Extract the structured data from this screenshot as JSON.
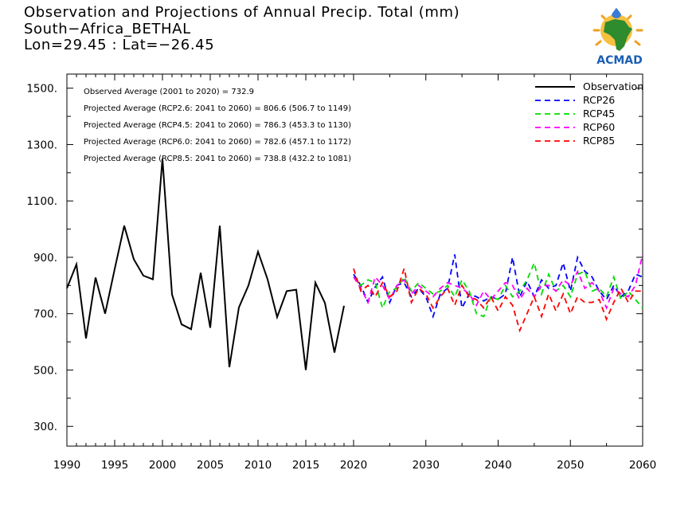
{
  "header": {
    "title_line1": "Observation and Projections of Annual Precip. Total (mm)",
    "title_line2": "South−Africa_BETHAL",
    "title_line3": "Lon=29.45 : Lat=−26.45"
  },
  "logo": {
    "text": "ACMAD",
    "icon": "africa-map-sun-logo"
  },
  "stats": [
    "Observed Average (2001 to 2020) = 732.9",
    "Projected Average (RCP2.6: 2041 to 2060) = 806.6 (506.7 to 1149)",
    "Projected Average (RCP4.5: 2041 to 2060) = 786.3 (453.3 to 1130)",
    "Projected Average (RCP6.0: 2041 to 2060) = 782.6 (457.1 to 1172)",
    "Projected Average (RCP8.5: 2041 to 2060) = 738.8 (432.2 to 1081)"
  ],
  "chart_data": {
    "type": "line",
    "title": "Observation and Projections of Annual Precip. Total (mm)",
    "xlabel": "",
    "ylabel": "",
    "xlim": [
      1990,
      2060
    ],
    "ylim": [
      230,
      1550
    ],
    "x_ticks": [
      1990,
      1995,
      2000,
      2005,
      2010,
      2015,
      2020,
      2030,
      2040,
      2050,
      2060
    ],
    "y_ticks": [
      300,
      500,
      700,
      900,
      1100,
      1300,
      1500
    ],
    "y_tick_labels": [
      "300.",
      "500.",
      "700.",
      "900.",
      "1100.",
      "1300.",
      "1500."
    ],
    "grid": false,
    "legend_position": "top-right",
    "series": [
      {
        "name": "Observation",
        "color": "#000000",
        "style": "solid",
        "x": [
          1990,
          1991,
          1992,
          1993,
          1994,
          1995,
          1996,
          1997,
          1998,
          1999,
          2000,
          2001,
          2002,
          2003,
          2004,
          2005,
          2006,
          2007,
          2008,
          2009,
          2010,
          2011,
          2012,
          2013,
          2014,
          2015,
          2016,
          2017,
          2018,
          2019,
          2020
        ],
        "values": [
          790,
          875,
          612,
          828,
          700,
          858,
          1012,
          893,
          835,
          822,
          1250,
          768,
          662,
          645,
          845,
          650,
          1012,
          510,
          722,
          800,
          920,
          822,
          688,
          780,
          785,
          500,
          810,
          738,
          562,
          728,
          null
        ]
      },
      {
        "name": "RCP26",
        "color": "#0000ff",
        "style": "dashed",
        "x": [
          2020,
          2021,
          2022,
          2023,
          2024,
          2025,
          2026,
          2027,
          2028,
          2029,
          2030,
          2031,
          2032,
          2033,
          2034,
          2035,
          2036,
          2037,
          2038,
          2039,
          2040,
          2041,
          2042,
          2043,
          2044,
          2045,
          2046,
          2047,
          2048,
          2049,
          2050,
          2051,
          2052,
          2053,
          2054,
          2055,
          2056,
          2057,
          2058,
          2059,
          2060
        ],
        "values": [
          840,
          800,
          740,
          795,
          830,
          740,
          800,
          810,
          760,
          790,
          760,
          690,
          770,
          790,
          910,
          720,
          770,
          760,
          745,
          760,
          750,
          770,
          900,
          760,
          815,
          760,
          820,
          790,
          800,
          880,
          780,
          900,
          850,
          830,
          780,
          750,
          800,
          760,
          780,
          840,
          830
        ]
      },
      {
        "name": "RCP45",
        "color": "#00dd00",
        "style": "dashed",
        "x": [
          2020,
          2021,
          2022,
          2023,
          2024,
          2025,
          2026,
          2027,
          2028,
          2029,
          2030,
          2031,
          2032,
          2033,
          2034,
          2035,
          2036,
          2037,
          2038,
          2039,
          2040,
          2041,
          2042,
          2043,
          2044,
          2045,
          2046,
          2047,
          2048,
          2049,
          2050,
          2051,
          2052,
          2053,
          2054,
          2055,
          2056,
          2057,
          2058,
          2059,
          2060
        ],
        "values": [
          830,
          800,
          820,
          810,
          720,
          780,
          790,
          830,
          780,
          810,
          790,
          770,
          780,
          800,
          760,
          820,
          780,
          700,
          690,
          760,
          750,
          800,
          760,
          780,
          820,
          880,
          770,
          840,
          780,
          800,
          760,
          840,
          850,
          780,
          790,
          760,
          830,
          750,
          780,
          750,
          720
        ]
      },
      {
        "name": "RCP60",
        "color": "#ff00ff",
        "style": "dashed",
        "x": [
          2020,
          2021,
          2022,
          2023,
          2024,
          2025,
          2026,
          2027,
          2028,
          2029,
          2030,
          2031,
          2032,
          2033,
          2034,
          2035,
          2036,
          2037,
          2038,
          2039,
          2040,
          2041,
          2042,
          2043,
          2044,
          2045,
          2046,
          2047,
          2048,
          2049,
          2050,
          2051,
          2052,
          2053,
          2054,
          2055,
          2056,
          2057,
          2058,
          2059,
          2060
        ],
        "values": [
          830,
          790,
          740,
          830,
          800,
          750,
          800,
          820,
          770,
          800,
          780,
          760,
          790,
          810,
          800,
          790,
          770,
          730,
          780,
          750,
          780,
          810,
          800,
          750,
          790,
          760,
          800,
          800,
          780,
          820,
          800,
          850,
          790,
          810,
          780,
          720,
          790,
          770,
          760,
          800,
          910
        ]
      },
      {
        "name": "RCP85",
        "color": "#ff0000",
        "style": "dashed",
        "x": [
          2020,
          2021,
          2022,
          2023,
          2024,
          2025,
          2026,
          2027,
          2028,
          2029,
          2030,
          2031,
          2032,
          2033,
          2034,
          2035,
          2036,
          2037,
          2038,
          2039,
          2040,
          2041,
          2042,
          2043,
          2044,
          2045,
          2046,
          2047,
          2048,
          2049,
          2050,
          2051,
          2052,
          2053,
          2054,
          2055,
          2056,
          2057,
          2058,
          2059,
          2060
        ],
        "values": [
          860,
          780,
          800,
          760,
          810,
          760,
          780,
          860,
          740,
          790,
          770,
          720,
          760,
          790,
          730,
          800,
          760,
          750,
          720,
          760,
          710,
          760,
          730,
          640,
          700,
          760,
          690,
          770,
          710,
          770,
          700,
          760,
          740,
          740,
          750,
          680,
          740,
          790,
          740,
          780,
          780
        ]
      }
    ]
  }
}
